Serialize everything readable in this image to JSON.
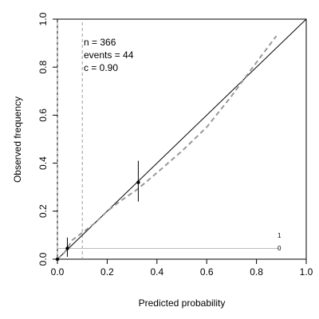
{
  "chart_data": {
    "type": "line",
    "xlabel": "Predicted probability",
    "ylabel": "Observed frequency",
    "xlim": [
      0,
      1
    ],
    "ylim": [
      0,
      1
    ],
    "xticks": [
      0,
      0.2,
      0.4,
      0.6,
      0.8,
      1
    ],
    "yticks": [
      0,
      0.2,
      0.4,
      0.6,
      0.8,
      1
    ],
    "xtick_labels": [
      "0.0",
      "0.2",
      "0.4",
      "0.6",
      "0.8",
      "1.0"
    ],
    "ytick_labels": [
      "0.0",
      "0.2",
      "0.4",
      "0.6",
      "0.8",
      "1.0"
    ],
    "grid": false,
    "annotations": [
      "n = 366",
      "events = 44",
      "c = 0.90"
    ],
    "rug_labels": {
      "top": "1",
      "bottom": "0"
    },
    "vertical_refs": [
      0.0,
      0.1
    ],
    "series": [
      {
        "type": "line",
        "values": [
          [
            0.0,
            0.0
          ],
          [
            1.0,
            1.0
          ]
        ],
        "color": "#000000"
      },
      {
        "type": "dashed-line",
        "values": [
          [
            0.0,
            0.0
          ],
          [
            0.03,
            0.03
          ],
          [
            0.06,
            0.08
          ],
          [
            0.1,
            0.11
          ],
          [
            0.15,
            0.15
          ],
          [
            0.2,
            0.2
          ],
          [
            0.25,
            0.24
          ],
          [
            0.32,
            0.29
          ],
          [
            0.4,
            0.36
          ],
          [
            0.5,
            0.45
          ],
          [
            0.6,
            0.55
          ],
          [
            0.7,
            0.68
          ],
          [
            0.8,
            0.82
          ],
          [
            0.88,
            0.93
          ]
        ],
        "color": "#999999"
      },
      {
        "type": "points-with-error",
        "points": [
          {
            "x": 0.0,
            "y": 0.0,
            "ylow": 0.0,
            "yhigh": 0.0
          },
          {
            "x": 0.04,
            "y": 0.045,
            "ylow": 0.01,
            "yhigh": 0.09
          },
          {
            "x": 0.325,
            "y": 0.32,
            "ylow": 0.24,
            "yhigh": 0.41
          }
        ],
        "color": "#000000"
      }
    ],
    "rug": {
      "y": 0.045,
      "xmin": 0.0,
      "xmax": 0.89,
      "color": "#bbbbbb"
    }
  }
}
